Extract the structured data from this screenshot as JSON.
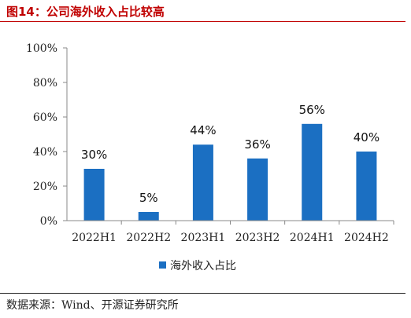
{
  "header": {
    "title": "图14：公司海外收入占比较高"
  },
  "footer": {
    "source": "数据来源：Wind、开源证券研究所"
  },
  "colors": {
    "bar": "#1b6fc2",
    "title": "#c00000"
  },
  "chart_data": {
    "type": "bar",
    "title": "",
    "xlabel": "",
    "ylabel": "",
    "categories": [
      "2022H1",
      "2022H2",
      "2023H1",
      "2023H2",
      "2024H1",
      "2024H2"
    ],
    "series": [
      {
        "name": "海外收入占比",
        "values": [
          30,
          5,
          44,
          36,
          56,
          40
        ]
      }
    ],
    "data_labels": [
      "30%",
      "5%",
      "44%",
      "36%",
      "56%",
      "40%"
    ],
    "ylim": [
      0,
      100
    ],
    "yticks": [
      0,
      20,
      40,
      60,
      80,
      100
    ],
    "ytick_labels": [
      "0%",
      "20%",
      "40%",
      "60%",
      "80%",
      "100%"
    ],
    "grid": false,
    "legend_position": "bottom-center"
  }
}
